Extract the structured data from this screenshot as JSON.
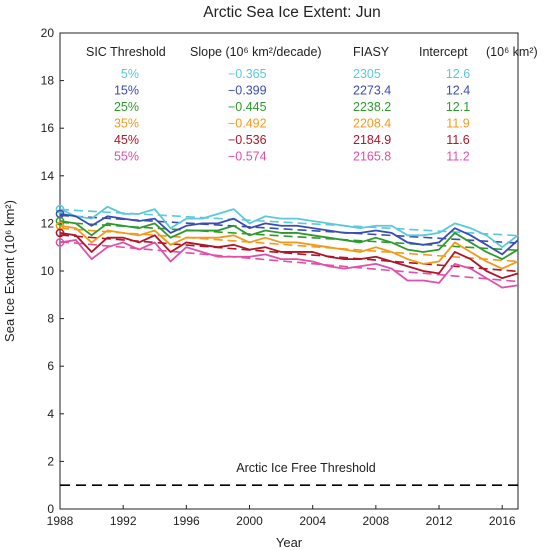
{
  "chart_data": {
    "type": "line",
    "title": "Arctic Sea Ice Extent: Jun",
    "xlabel": "Year",
    "ylabel": "Sea Ice Extent (10⁶ km²)",
    "xlim": [
      1988,
      2017
    ],
    "ylim": [
      0,
      20
    ],
    "xticks": [
      1988,
      1992,
      1996,
      2000,
      2004,
      2008,
      2012,
      2016
    ],
    "yticks": [
      0,
      2,
      4,
      6,
      8,
      10,
      12,
      14,
      16,
      18,
      20
    ],
    "grid": false,
    "x": [
      1988,
      1989,
      1990,
      1991,
      1992,
      1993,
      1994,
      1995,
      1996,
      1997,
      1998,
      1999,
      2000,
      2001,
      2002,
      2003,
      2004,
      2005,
      2006,
      2007,
      2008,
      2009,
      2010,
      2011,
      2012,
      2013,
      2014,
      2015,
      2016,
      2017
    ],
    "series": [
      {
        "name": "5%",
        "color": "#5bc8dc",
        "slope": "−0.365",
        "fiasy": "2305",
        "intercept": "12.6",
        "values": [
          12.6,
          12.3,
          12.2,
          12.7,
          12.4,
          12.4,
          12.6,
          11.8,
          12.2,
          12.2,
          12.4,
          12.6,
          12.0,
          12.3,
          12.2,
          12.2,
          12.1,
          12.0,
          11.9,
          11.8,
          11.9,
          11.9,
          11.5,
          11.5,
          11.6,
          12.0,
          11.8,
          11.5,
          11.0,
          11.5
        ]
      },
      {
        "name": "15%",
        "color": "#3a4db0",
        "slope": "−0.399",
        "fiasy": "2273.4",
        "intercept": "12.4",
        "values": [
          12.4,
          12.3,
          11.9,
          12.3,
          12.2,
          12.1,
          12.2,
          11.6,
          11.9,
          12.0,
          12.0,
          12.2,
          11.8,
          12.0,
          11.9,
          11.9,
          11.8,
          11.7,
          11.6,
          11.6,
          11.7,
          11.6,
          11.2,
          11.1,
          11.2,
          11.8,
          11.5,
          11.1,
          10.7,
          11.3
        ]
      },
      {
        "name": "25%",
        "color": "#2e9a2e",
        "slope": "−0.445",
        "fiasy": "2238.2",
        "intercept": "12.1",
        "values": [
          12.1,
          12.0,
          11.5,
          12.0,
          11.9,
          11.8,
          12.0,
          11.4,
          11.7,
          11.7,
          11.7,
          11.9,
          11.5,
          11.7,
          11.6,
          11.6,
          11.5,
          11.4,
          11.3,
          11.2,
          11.4,
          11.2,
          10.9,
          10.8,
          10.9,
          11.6,
          11.2,
          10.8,
          10.5,
          10.9
        ]
      },
      {
        "name": "35%",
        "color": "#f39a1a",
        "slope": "−0.492",
        "fiasy": "2208.4",
        "intercept": "11.9",
        "values": [
          11.9,
          11.8,
          11.2,
          11.7,
          11.6,
          11.5,
          11.7,
          11.1,
          11.4,
          11.4,
          11.4,
          11.5,
          11.2,
          11.4,
          11.2,
          11.2,
          11.1,
          11.0,
          10.9,
          10.8,
          11.0,
          10.8,
          10.5,
          10.3,
          10.4,
          11.2,
          10.8,
          10.4,
          10.1,
          10.4
        ]
      },
      {
        "name": "45%",
        "color": "#b01528",
        "slope": "−0.536",
        "fiasy": "2184.9",
        "intercept": "11.6",
        "values": [
          11.6,
          11.5,
          10.8,
          11.4,
          11.4,
          11.2,
          11.5,
          10.8,
          11.2,
          11.1,
          11.0,
          11.1,
          10.9,
          11.0,
          10.8,
          10.8,
          10.8,
          10.6,
          10.5,
          10.5,
          10.6,
          10.4,
          10.2,
          10.0,
          9.9,
          10.8,
          10.5,
          10.0,
          9.7,
          9.9
        ]
      },
      {
        "name": "55%",
        "color": "#e14fa8",
        "slope": "−0.574",
        "fiasy": "2165.8",
        "intercept": "11.2",
        "values": [
          11.2,
          11.3,
          10.5,
          11.0,
          11.2,
          10.9,
          11.2,
          10.4,
          11.0,
          10.8,
          10.6,
          10.6,
          10.6,
          10.7,
          10.5,
          10.5,
          10.4,
          10.2,
          10.1,
          10.2,
          10.3,
          10.1,
          9.6,
          9.6,
          9.5,
          10.3,
          10.1,
          9.7,
          9.3,
          9.4
        ]
      }
    ],
    "reference_line": {
      "label": "Arctic Ice Free Threshold",
      "value": 1,
      "style": "dashed",
      "color": "#000000"
    },
    "table": {
      "headers": {
        "threshold": "SIC Threshold",
        "slope": "Slope  (10⁶ km²/decade)",
        "fiasy": "FIASY",
        "intercept": "Intercept",
        "units": "(10⁶ km²)"
      }
    }
  }
}
